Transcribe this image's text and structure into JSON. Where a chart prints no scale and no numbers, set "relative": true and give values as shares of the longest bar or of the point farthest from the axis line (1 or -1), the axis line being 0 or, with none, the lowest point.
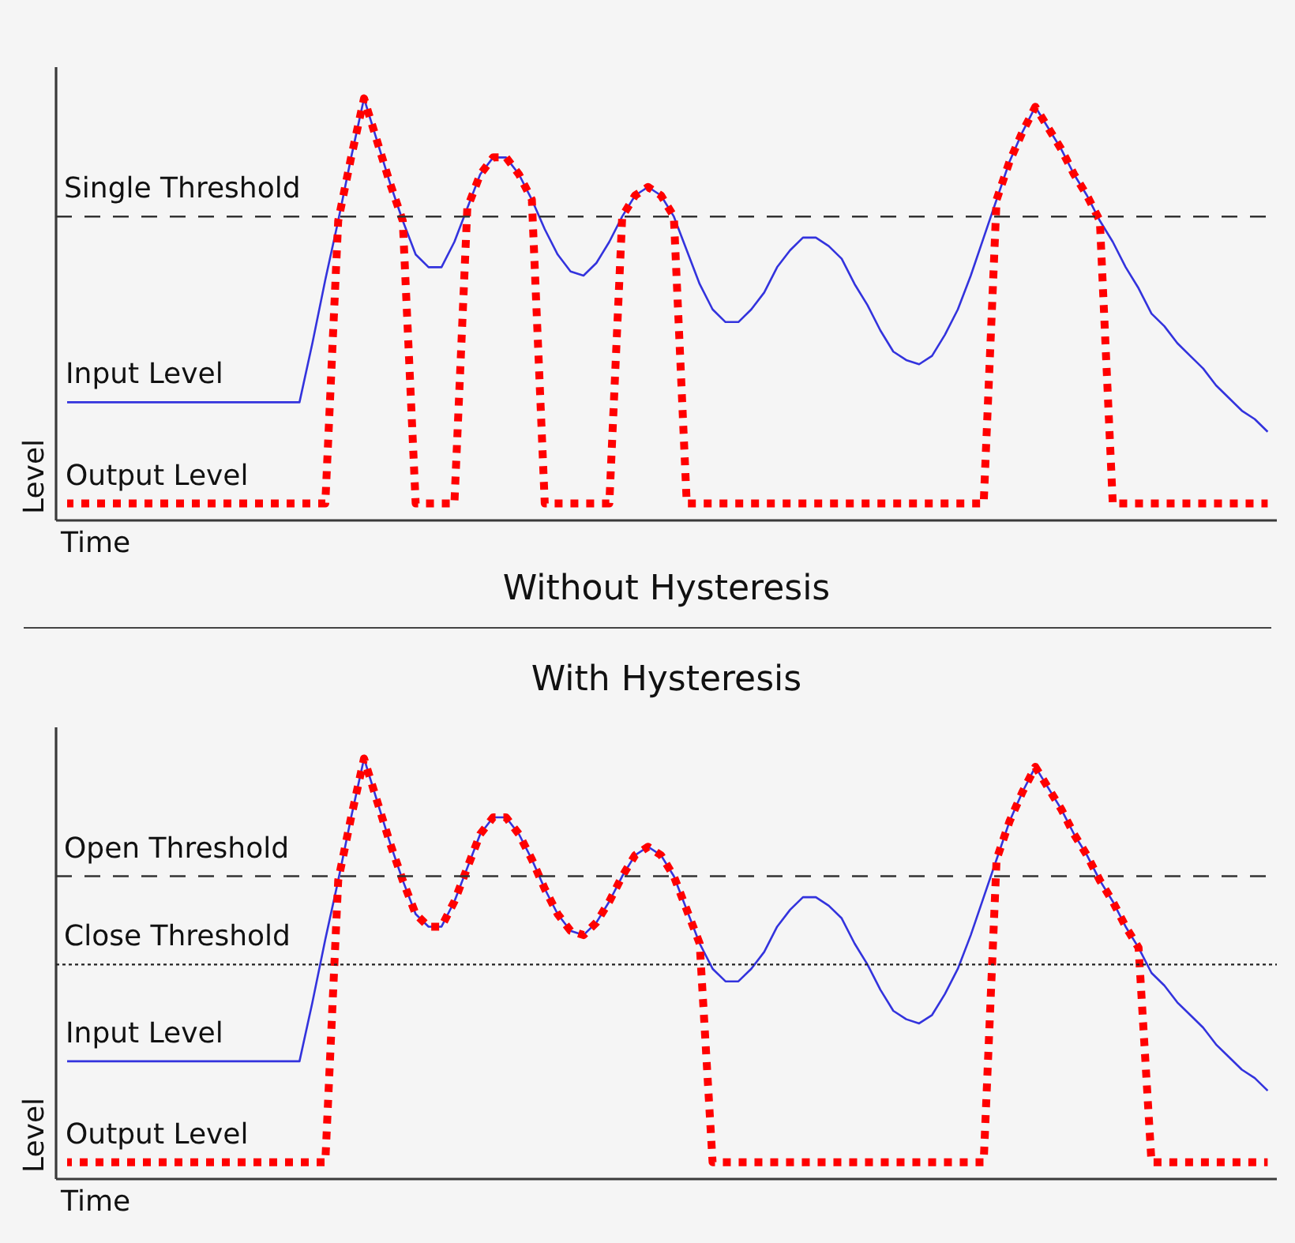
{
  "chart_data": [
    {
      "type": "line",
      "title": "Without Hysteresis",
      "xlabel": "Time",
      "ylabel": "Level",
      "relative": true,
      "categories": [
        null,
        null,
        null,
        null,
        null,
        null,
        null,
        null,
        null,
        null,
        null,
        null,
        null,
        null,
        null,
        null,
        null,
        null,
        null,
        null,
        null,
        null,
        null,
        null,
        null,
        null,
        null,
        null,
        null,
        null,
        null,
        null,
        null,
        null,
        null,
        null,
        null,
        null,
        null,
        null,
        null,
        null,
        null,
        null,
        null,
        null,
        null,
        null,
        null,
        null,
        null,
        null,
        null,
        null,
        null,
        null,
        null,
        null,
        null,
        null,
        null,
        null,
        null,
        null,
        null,
        null,
        null,
        null,
        null,
        null,
        null,
        null,
        null,
        null,
        null,
        null,
        null,
        null,
        null,
        null,
        null,
        null,
        null,
        null,
        null,
        null,
        null,
        null,
        null,
        null,
        null,
        null,
        null,
        null
      ],
      "series": [
        {
          "name": "Input Level",
          "color": "#3333dd",
          "line_style": "solid",
          "values": [
            0.28,
            0.28,
            0.28,
            0.28,
            0.28,
            0.28,
            0.28,
            0.28,
            0.28,
            0.28,
            0.28,
            0.28,
            0.28,
            0.28,
            0.28,
            0.28,
            0.28,
            0.28,
            0.28,
            0.42,
            0.57,
            0.71,
            0.86,
            1.0,
            0.9,
            0.8,
            0.71,
            0.63,
            0.6,
            0.6,
            0.66,
            0.74,
            0.82,
            0.86,
            0.86,
            0.82,
            0.76,
            0.69,
            0.63,
            0.59,
            0.58,
            0.61,
            0.66,
            0.72,
            0.77,
            0.79,
            0.77,
            0.72,
            0.64,
            0.56,
            0.5,
            0.47,
            0.47,
            0.5,
            0.54,
            0.6,
            0.64,
            0.67,
            0.67,
            0.65,
            0.62,
            0.56,
            0.51,
            0.45,
            0.4,
            0.38,
            0.37,
            0.39,
            0.44,
            0.5,
            0.58,
            0.67,
            0.76,
            0.85,
            0.92,
            0.98,
            0.93,
            0.88,
            0.82,
            0.77,
            0.71,
            0.66,
            0.6,
            0.55,
            0.49,
            0.46,
            0.42,
            0.39,
            0.36,
            0.32,
            0.29,
            0.26,
            0.24,
            0.21
          ]
        },
        {
          "name": "Output Level",
          "color": "#ff0000",
          "line_style": "dotted",
          "values": [
            0.04,
            0.04,
            0.04,
            0.04,
            0.04,
            0.04,
            0.04,
            0.04,
            0.04,
            0.04,
            0.04,
            0.04,
            0.04,
            0.04,
            0.04,
            0.04,
            0.04,
            0.04,
            0.04,
            0.04,
            0.04,
            0.71,
            0.86,
            1.0,
            0.9,
            0.8,
            0.71,
            0.04,
            0.04,
            0.04,
            0.04,
            0.74,
            0.82,
            0.86,
            0.86,
            0.82,
            0.76,
            0.04,
            0.04,
            0.04,
            0.04,
            0.04,
            0.04,
            0.72,
            0.77,
            0.79,
            0.77,
            0.72,
            0.04,
            0.04,
            0.04,
            0.04,
            0.04,
            0.04,
            0.04,
            0.04,
            0.04,
            0.04,
            0.04,
            0.04,
            0.04,
            0.04,
            0.04,
            0.04,
            0.04,
            0.04,
            0.04,
            0.04,
            0.04,
            0.04,
            0.04,
            0.04,
            0.76,
            0.85,
            0.92,
            0.98,
            0.93,
            0.88,
            0.82,
            0.77,
            0.71,
            0.04,
            0.04,
            0.04,
            0.04,
            0.04,
            0.04,
            0.04,
            0.04,
            0.04,
            0.04,
            0.04,
            0.04,
            0.04
          ]
        }
      ],
      "ref_lines": [
        {
          "axis": "y",
          "value": 0.72,
          "label": "Single Threshold",
          "color": "#333333",
          "line_style": "dashed"
        }
      ]
    },
    {
      "type": "line",
      "title": "With Hysteresis",
      "xlabel": "Time",
      "ylabel": "Level",
      "relative": true,
      "categories": [
        null,
        null,
        null,
        null,
        null,
        null,
        null,
        null,
        null,
        null,
        null,
        null,
        null,
        null,
        null,
        null,
        null,
        null,
        null,
        null,
        null,
        null,
        null,
        null,
        null,
        null,
        null,
        null,
        null,
        null,
        null,
        null,
        null,
        null,
        null,
        null,
        null,
        null,
        null,
        null,
        null,
        null,
        null,
        null,
        null,
        null,
        null,
        null,
        null,
        null,
        null,
        null,
        null,
        null,
        null,
        null,
        null,
        null,
        null,
        null,
        null,
        null,
        null,
        null,
        null,
        null,
        null,
        null,
        null,
        null,
        null,
        null,
        null,
        null,
        null,
        null,
        null,
        null,
        null,
        null,
        null,
        null,
        null,
        null,
        null,
        null,
        null,
        null,
        null,
        null,
        null,
        null,
        null,
        null
      ],
      "series": [
        {
          "name": "Input Level",
          "color": "#3333dd",
          "line_style": "solid",
          "values": [
            0.28,
            0.28,
            0.28,
            0.28,
            0.28,
            0.28,
            0.28,
            0.28,
            0.28,
            0.28,
            0.28,
            0.28,
            0.28,
            0.28,
            0.28,
            0.28,
            0.28,
            0.28,
            0.28,
            0.42,
            0.57,
            0.71,
            0.86,
            1.0,
            0.9,
            0.8,
            0.71,
            0.63,
            0.6,
            0.6,
            0.66,
            0.74,
            0.82,
            0.86,
            0.86,
            0.82,
            0.76,
            0.69,
            0.63,
            0.59,
            0.58,
            0.61,
            0.66,
            0.72,
            0.77,
            0.79,
            0.77,
            0.72,
            0.64,
            0.56,
            0.5,
            0.47,
            0.47,
            0.5,
            0.54,
            0.6,
            0.64,
            0.67,
            0.67,
            0.65,
            0.62,
            0.56,
            0.51,
            0.45,
            0.4,
            0.38,
            0.37,
            0.39,
            0.44,
            0.5,
            0.58,
            0.67,
            0.76,
            0.85,
            0.92,
            0.98,
            0.93,
            0.88,
            0.82,
            0.77,
            0.71,
            0.66,
            0.6,
            0.55,
            0.49,
            0.46,
            0.42,
            0.39,
            0.36,
            0.32,
            0.29,
            0.26,
            0.24,
            0.21
          ]
        },
        {
          "name": "Output Level",
          "color": "#ff0000",
          "line_style": "dotted",
          "values": [
            0.04,
            0.04,
            0.04,
            0.04,
            0.04,
            0.04,
            0.04,
            0.04,
            0.04,
            0.04,
            0.04,
            0.04,
            0.04,
            0.04,
            0.04,
            0.04,
            0.04,
            0.04,
            0.04,
            0.04,
            0.04,
            0.71,
            0.86,
            1.0,
            0.9,
            0.8,
            0.71,
            0.63,
            0.6,
            0.6,
            0.66,
            0.74,
            0.82,
            0.86,
            0.86,
            0.82,
            0.76,
            0.69,
            0.63,
            0.59,
            0.58,
            0.61,
            0.66,
            0.72,
            0.77,
            0.79,
            0.77,
            0.72,
            0.64,
            0.56,
            0.04,
            0.04,
            0.04,
            0.04,
            0.04,
            0.04,
            0.04,
            0.04,
            0.04,
            0.04,
            0.04,
            0.04,
            0.04,
            0.04,
            0.04,
            0.04,
            0.04,
            0.04,
            0.04,
            0.04,
            0.04,
            0.04,
            0.76,
            0.85,
            0.92,
            0.98,
            0.93,
            0.88,
            0.82,
            0.77,
            0.71,
            0.66,
            0.6,
            0.55,
            0.04,
            0.04,
            0.04,
            0.04,
            0.04,
            0.04,
            0.04,
            0.04,
            0.04,
            0.04
          ]
        }
      ],
      "ref_lines": [
        {
          "axis": "y",
          "value": 0.72,
          "label": "Open Threshold",
          "color": "#333333",
          "line_style": "dashed"
        },
        {
          "axis": "y",
          "value": 0.51,
          "label": "Close Threshold",
          "color": "#222222",
          "line_style": "dotted"
        }
      ]
    }
  ]
}
